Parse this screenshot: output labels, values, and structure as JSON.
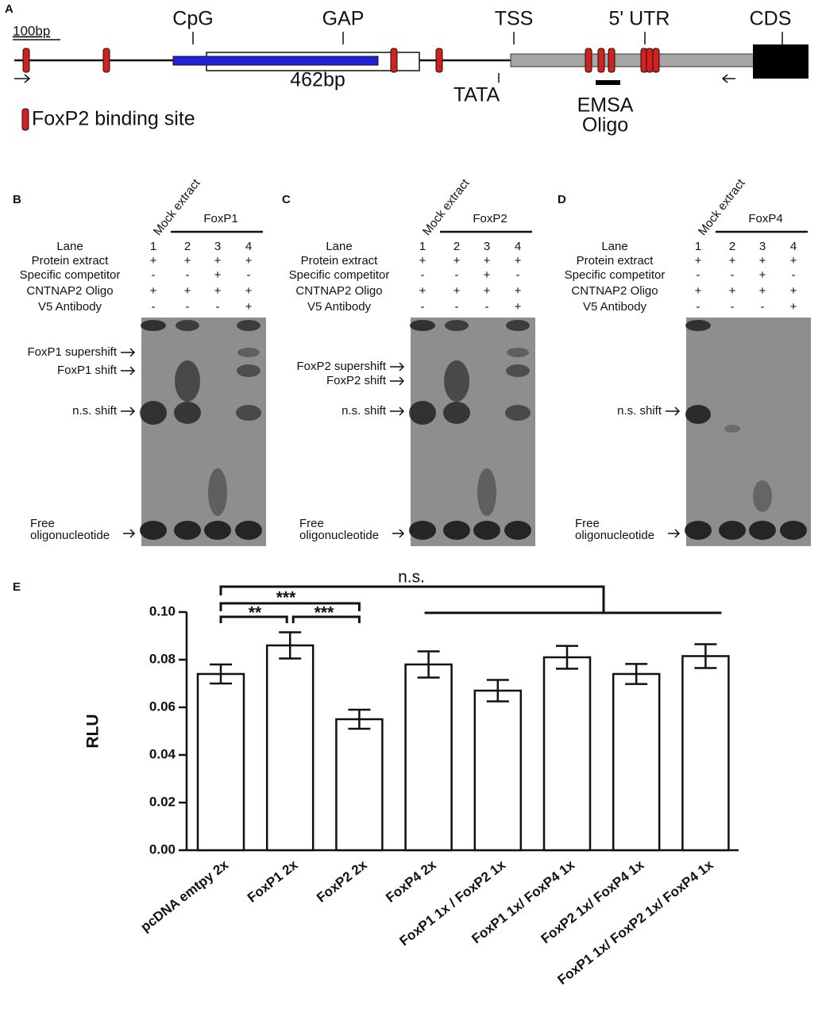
{
  "panel_a": {
    "label": "A",
    "scale": "100bp",
    "features": [
      "CpG",
      "GAP",
      "TSS",
      "5' UTR",
      "CDS"
    ],
    "length_label": "462bp",
    "tata": "TATA",
    "emsa": [
      "EMSA",
      "Oligo"
    ],
    "legend": "FoxP2 binding site"
  },
  "gels": [
    {
      "label": "B",
      "mock": "Mock extract",
      "group": "FoxP1",
      "row_labels": [
        "Lane",
        "Protein extract",
        "Specific competitor",
        "CNTNAP2 Oligo",
        "V5 Antibody"
      ],
      "rows": [
        [
          "1",
          "2",
          "3",
          "4"
        ],
        [
          "+",
          "+",
          "+",
          "+"
        ],
        [
          "-",
          "-",
          "+",
          "-"
        ],
        [
          "+",
          "+",
          "+",
          "+"
        ],
        [
          "-",
          "-",
          "-",
          "+"
        ]
      ],
      "bands": [
        "FoxP1 supershift",
        "FoxP1 shift",
        "n.s. shift"
      ],
      "free": [
        "Free",
        "oligonucleotide"
      ]
    },
    {
      "label": "C",
      "mock": "Mock extract",
      "group": "FoxP2",
      "row_labels": [
        "Lane",
        "Protein extract",
        "Specific competitor",
        "CNTNAP2 Oligo",
        "V5 Antibody"
      ],
      "rows": [
        [
          "1",
          "2",
          "3",
          "4"
        ],
        [
          "+",
          "+",
          "+",
          "+"
        ],
        [
          "-",
          "-",
          "+",
          "-"
        ],
        [
          "+",
          "+",
          "+",
          "+"
        ],
        [
          "-",
          "-",
          "-",
          "+"
        ]
      ],
      "bands": [
        "FoxP2 supershift",
        "FoxP2 shift",
        "n.s. shift"
      ],
      "free": [
        "Free",
        "oligonucleotide"
      ]
    },
    {
      "label": "D",
      "mock": "Mock extract",
      "group": "FoxP4",
      "row_labels": [
        "Lane",
        "Protein extract",
        "Specific competitor",
        "CNTNAP2 Oligo",
        "V5 Antibody"
      ],
      "rows": [
        [
          "1",
          "2",
          "3",
          "4"
        ],
        [
          "+",
          "+",
          "+",
          "+"
        ],
        [
          "-",
          "-",
          "+",
          "-"
        ],
        [
          "+",
          "+",
          "+",
          "+"
        ],
        [
          "-",
          "-",
          "-",
          "+"
        ]
      ],
      "bands": [
        "n.s. shift"
      ],
      "free": [
        "Free",
        "oligonucleotide"
      ]
    }
  ],
  "chart_data": {
    "type": "bar",
    "panel": "E",
    "ylabel": "RLU",
    "categories": [
      "pcDNA emtpy 2x",
      "FoxP1 2x",
      "FoxP2 2x",
      "FoxP4 2x",
      "FoxP1 1x / FoxP2 1x",
      "FoxP1 1x/ FoxP4 1x",
      "FoxP2 1x/ FoxP4 1x",
      "FoxP1 1x/ FoxP2 1x/ FoxP4 1x"
    ],
    "values": [
      0.074,
      0.086,
      0.055,
      0.078,
      0.067,
      0.081,
      0.074,
      0.0815
    ],
    "errors": [
      0.004,
      0.0055,
      0.004,
      0.0055,
      0.0045,
      0.0048,
      0.0042,
      0.005
    ],
    "color": "#ffffff",
    "ylim": [
      0,
      0.1
    ],
    "yticks": [
      {
        "value": 0,
        "label": "0.00"
      },
      {
        "value": 0.02,
        "label": "0.02"
      },
      {
        "value": 0.04,
        "label": "0.04"
      },
      {
        "value": 0.06,
        "label": "0.06"
      },
      {
        "value": 0.08,
        "label": "0.08"
      },
      {
        "value": 0.1,
        "label": "0.10"
      }
    ],
    "significance": [
      "n.s.",
      "***",
      "**",
      "***"
    ]
  }
}
